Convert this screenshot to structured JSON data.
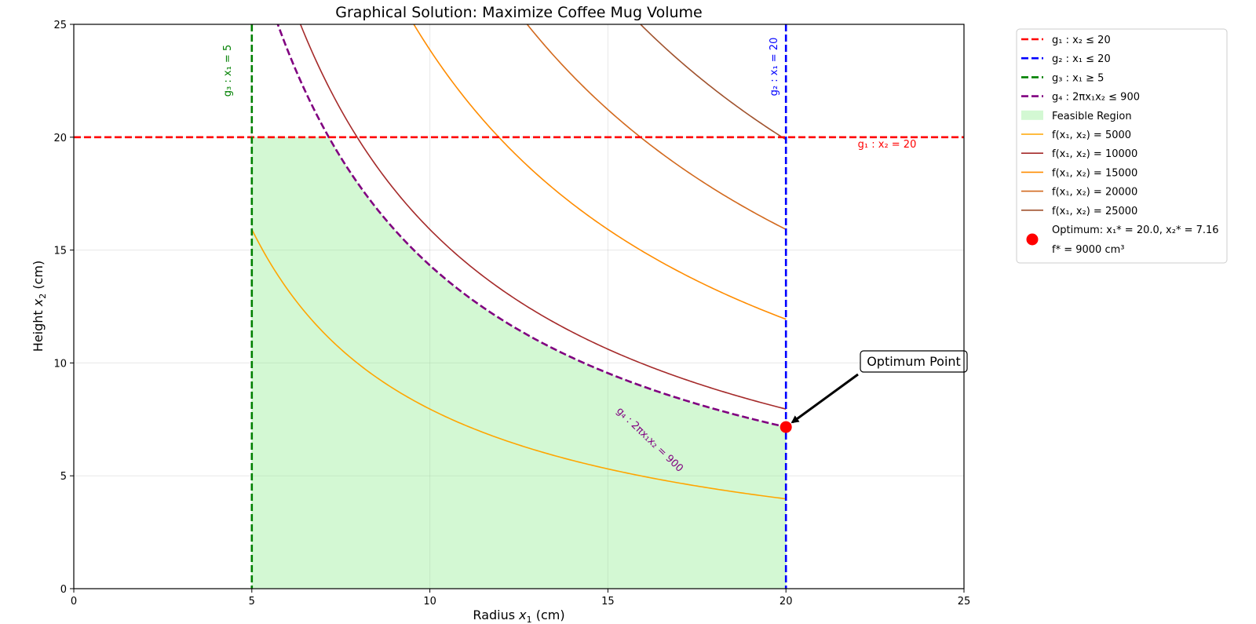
{
  "chart_data": {
    "type": "line",
    "title": "Graphical Solution: Maximize Coffee Mug Volume",
    "xlabel_base": "Radius ",
    "xlabel_var": "x",
    "xlabel_sub": "1",
    "xlabel_unit": " (cm)",
    "ylabel_base": "Height ",
    "ylabel_var": "x",
    "ylabel_sub": "2",
    "ylabel_unit": " (cm)",
    "xlim": [
      0,
      25
    ],
    "ylim": [
      0,
      25
    ],
    "xticks": [
      0,
      5,
      10,
      15,
      20,
      25
    ],
    "yticks": [
      0,
      5,
      10,
      15,
      20,
      25
    ],
    "grid": true,
    "legend_position": "outside-right",
    "constraints": [
      {
        "id": "g1",
        "kind": "hline",
        "value": 20,
        "color": "#ff0000",
        "legend": "g₁ : x₂ ≤ 20",
        "label": "g₁ : x₂ = 20"
      },
      {
        "id": "g2",
        "kind": "vline",
        "value": 20,
        "color": "#0000ff",
        "legend": "g₂ : x₁ ≤ 20",
        "label": "g₂ : x₁ = 20"
      },
      {
        "id": "g3",
        "kind": "vline",
        "value": 5,
        "color": "#008000",
        "legend": "g₃ : x₁ ≥ 5",
        "label": "g₃ : x₁ = 5"
      },
      {
        "id": "g4",
        "kind": "hyperbola",
        "k": 143.24,
        "color": "#800080",
        "legend": "g₄ : 2πx₁x₂ ≤ 900",
        "label": "g₄ : 2πx₁x₂ = 900"
      }
    ],
    "feasible_region": {
      "legend": "Feasible Region",
      "color": "#90ee90"
    },
    "contours": [
      {
        "level": 5000,
        "k": 79.58,
        "color": "#ffa500",
        "legend": "f(x₁, x₂) = 5000"
      },
      {
        "level": 10000,
        "k": 159.15,
        "color": "#a52a2a",
        "legend": "f(x₁, x₂) = 10000"
      },
      {
        "level": 15000,
        "k": 238.73,
        "color": "#ff8c00",
        "legend": "f(x₁, x₂) = 15000"
      },
      {
        "level": 20000,
        "k": 318.31,
        "color": "#d2691e",
        "legend": "f(x₁, x₂) = 20000"
      },
      {
        "level": 25000,
        "k": 397.89,
        "color": "#a0522d",
        "legend": "f(x₁, x₂) = 25000"
      }
    ],
    "optimum": {
      "x": 20.0,
      "y": 7.16,
      "color": "#ff0000",
      "legend_line1": "Optimum: x₁* = 20.0, x₂* = 7.16",
      "legend_line2": "f* = 9000 cm³",
      "annotation": "Optimum Point"
    }
  }
}
